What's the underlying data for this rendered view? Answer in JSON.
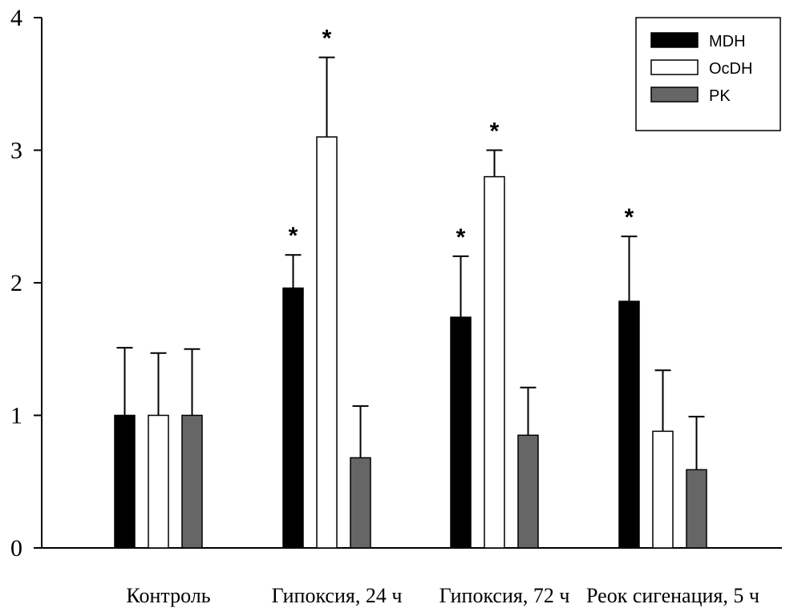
{
  "chart_data": {
    "type": "bar",
    "title": "",
    "xlabel": "",
    "ylabel": "",
    "ylim": [
      0,
      4
    ],
    "yticks": [
      "0",
      "1",
      "2",
      "3",
      "4"
    ],
    "categories": [
      "Контроль",
      "Гипоксия, 24 ч",
      "Гипоксия, 72 ч",
      "Реок сигенация, 5 ч"
    ],
    "series": [
      {
        "name": "MDH",
        "color": "#000000",
        "values": [
          1.0,
          1.96,
          1.74,
          1.86
        ],
        "errors_upper": [
          1.51,
          2.21,
          2.2,
          2.35
        ],
        "significant": [
          false,
          true,
          true,
          true
        ]
      },
      {
        "name": "OcDH",
        "color": "#ffffff",
        "values": [
          1.0,
          3.1,
          2.8,
          0.88
        ],
        "errors_upper": [
          1.47,
          3.7,
          3.0,
          1.34
        ],
        "significant": [
          false,
          true,
          true,
          false
        ]
      },
      {
        "name": "PK",
        "color": "#666666",
        "values": [
          1.0,
          0.68,
          0.85,
          0.59
        ],
        "errors_upper": [
          1.5,
          1.07,
          1.21,
          0.99
        ],
        "significant": [
          false,
          false,
          false,
          false
        ]
      }
    ],
    "significance_marker": "*",
    "legend_position": "top-right",
    "grid": false
  }
}
